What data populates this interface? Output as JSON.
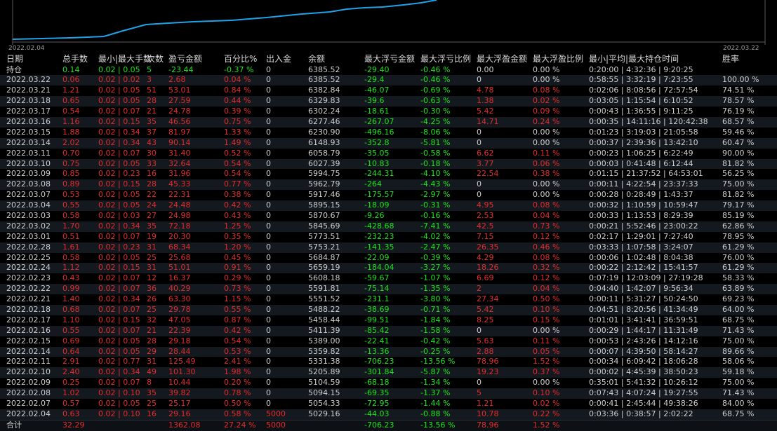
{
  "chart": {
    "start_label": "2022.02.04",
    "end_label": "2022.03.22",
    "line_color": "#1fa2e8"
  },
  "headers": [
    "日期",
    "总手数",
    "最小|最大手数",
    "次数",
    "盈亏金额",
    "百分比%",
    "出入金",
    "余额",
    "最大浮亏金额",
    "最大浮亏比例",
    "最大浮盈金额",
    "最大浮盈比例",
    "最小|平均|最大持仓时间",
    "胜率"
  ],
  "position_row": {
    "label": "持仓",
    "lots": "0.14",
    "minmax": "0.02 | 0.05",
    "count": "5",
    "pl": "-23.44",
    "pct": "-0.37 %",
    "io": "0",
    "bal": "6385.52",
    "maxloss": "-29.40",
    "maxlosspct": "-0.46 %",
    "maxprofit": "0.00",
    "maxprofitpct": "0.00 %",
    "hold": "0:20:00 | 4:32:36 | 9:20:25",
    "win": ""
  },
  "rows": [
    [
      "2022.03.22",
      "0.06",
      "0.02 | 0.02",
      "3",
      "2.68",
      "0.04 %",
      "0",
      "6385.52",
      "-29.4",
      "-0.46 %",
      "0",
      "0.00 %",
      "0:58:55 | 3:32:19 | 7:23:55",
      "100.00 %"
    ],
    [
      "2022.03.21",
      "1.21",
      "0.02 | 0.05",
      "51",
      "53.01",
      "0.84 %",
      "0",
      "6382.84",
      "-46.07",
      "-0.69 %",
      "4.78",
      "0.08 %",
      "0:02:06 | 8:08:56 | 72:57:54",
      "74.51 %"
    ],
    [
      "2022.03.18",
      "0.65",
      "0.02 | 0.05",
      "28",
      "27.59",
      "0.44 %",
      "0",
      "6329.83",
      "-39.6",
      "-0.63 %",
      "1.38",
      "0.02 %",
      "0:03:05 | 1:15:54 | 6:10:52",
      "78.57 %"
    ],
    [
      "2022.03.17",
      "0.54",
      "0.02 | 0.07",
      "21",
      "24.78",
      "0.39 %",
      "0",
      "6302.24",
      "-18.61",
      "-0.30 %",
      "5.42",
      "0.09 %",
      "0:00:43 | 1:36:55 | 9:11:25",
      "76.19 %"
    ],
    [
      "2022.03.16",
      "1.16",
      "0.02 | 0.15",
      "35",
      "46.56",
      "0.75 %",
      "0",
      "6277.46",
      "-267.07",
      "-4.25 %",
      "14.71",
      "0.24 %",
      "0:00:35 | 14:11:16 | 120:42:38",
      "68.57 %"
    ],
    [
      "2022.03.15",
      "1.88",
      "0.02 | 0.34",
      "37",
      "81.97",
      "1.33 %",
      "0",
      "6230.90",
      "-496.16",
      "-8.06 %",
      "0",
      "0.00 %",
      "0:01:23 | 3:19:03 | 21:05:58",
      "59.46 %"
    ],
    [
      "2022.03.14",
      "2.02",
      "0.02 | 0.34",
      "43",
      "90.14",
      "1.49 %",
      "0",
      "6148.93",
      "-352.8",
      "-5.81 %",
      "0",
      "0.00 %",
      "0:00:37 | 2:39:36 | 13:42:10",
      "60.47 %"
    ],
    [
      "2022.03.11",
      "0.70",
      "0.02 | 0.07",
      "30",
      "31.40",
      "0.52 %",
      "0",
      "6058.79",
      "-35.05",
      "-0.58 %",
      "6.62",
      "0.11 %",
      "0:00:23 | 1:06:25 | 6:22:49",
      "90.00 %"
    ],
    [
      "2022.03.10",
      "0.75",
      "0.02 | 0.05",
      "33",
      "32.64",
      "0.54 %",
      "0",
      "6027.39",
      "-10.83",
      "-0.18 %",
      "3.77",
      "0.06 %",
      "0:00:03 | 0:41:48 | 6:12:44",
      "81.82 %"
    ],
    [
      "2022.03.09",
      "0.85",
      "0.02 | 0.23",
      "16",
      "31.96",
      "0.54 %",
      "0",
      "5994.75",
      "-244.31",
      "-4.10 %",
      "22.54",
      "0.38 %",
      "0:01:15 | 21:37:52 | 64:53:01",
      "56.25 %"
    ],
    [
      "2022.03.08",
      "0.89",
      "0.02 | 0.15",
      "28",
      "45.33",
      "0.77 %",
      "0",
      "5962.79",
      "-264",
      "-4.43 %",
      "0",
      "0.00 %",
      "0:00:11 | 4:22:54 | 23:37:33",
      "75.00 %"
    ],
    [
      "2022.03.07",
      "0.53",
      "0.02 | 0.05",
      "22",
      "22.31",
      "0.38 %",
      "0",
      "5917.46",
      "-175.57",
      "-2.97 %",
      "0",
      "0.00 %",
      "0:00:28 | 0:28:49 | 1:43:37",
      "81.82 %"
    ],
    [
      "2022.03.04",
      "0.55",
      "0.02 | 0.05",
      "24",
      "24.48",
      "0.42 %",
      "0",
      "5895.15",
      "-18.09",
      "-0.31 %",
      "4.95",
      "0.08 %",
      "0:00:32 | 1:10:59 | 10:59:47",
      "79.17 %"
    ],
    [
      "2022.03.03",
      "0.58",
      "0.02 | 0.03",
      "27",
      "24.98",
      "0.43 %",
      "0",
      "5870.67",
      "-9.26",
      "-0.16 %",
      "2.53",
      "0.04 %",
      "0:00:33 | 1:13:53 | 8:29:39",
      "85.19 %"
    ],
    [
      "2022.03.02",
      "1.70",
      "0.02 | 0.34",
      "35",
      "72.18",
      "1.25 %",
      "0",
      "5845.69",
      "-428.68",
      "-7.41 %",
      "42.5",
      "0.73 %",
      "0:00:21 | 5:52:46 | 23:00:22",
      "62.86 %"
    ],
    [
      "2022.03.01",
      "0.51",
      "0.02 | 0.07",
      "19",
      "20.30",
      "0.35 %",
      "0",
      "5773.51",
      "-232.23",
      "-4.02 %",
      "7.15",
      "0.12 %",
      "0:02:17 | 1:29:01 | 7:27:40",
      "78.95 %"
    ],
    [
      "2022.02.28",
      "1.61",
      "0.02 | 0.23",
      "31",
      "68.34",
      "1.20 %",
      "0",
      "5753.21",
      "-141.35",
      "-2.47 %",
      "26.35",
      "0.46 %",
      "0:03:33 | 1:07:58 | 3:24:07",
      "61.29 %"
    ],
    [
      "2022.02.25",
      "0.58",
      "0.02 | 0.05",
      "25",
      "25.68",
      "0.45 %",
      "0",
      "5684.87",
      "-22.09",
      "-0.39 %",
      "4.29",
      "0.08 %",
      "0:00:06 | 1:02:48 | 8:04:38",
      "76.00 %"
    ],
    [
      "2022.02.24",
      "1.12",
      "0.02 | 0.15",
      "31",
      "51.01",
      "0.91 %",
      "0",
      "5659.19",
      "-184.04",
      "-3.27 %",
      "18.26",
      "0.32 %",
      "0:00:22 | 2:12:42 | 15:41:57",
      "61.29 %"
    ],
    [
      "2022.02.23",
      "0.43",
      "0.02 | 0.07",
      "12",
      "16.37",
      "0.29 %",
      "0",
      "5608.18",
      "-59.67",
      "-1.07 %",
      "6.69",
      "0.12 %",
      "0:07:19 | 12:03:09 | 27:19:28",
      "58.33 %"
    ],
    [
      "2022.02.22",
      "0.99",
      "0.02 | 0.07",
      "36",
      "40.29",
      "0.73 %",
      "0",
      "5591.81",
      "-75.14",
      "-1.35 %",
      "2",
      "0.04 %",
      "0:04:40 | 1:42:07 | 9:56:34",
      "63.89 %"
    ],
    [
      "2022.02.21",
      "1.40",
      "0.02 | 0.34",
      "26",
      "63.30",
      "1.15 %",
      "0",
      "5551.52",
      "-231.1",
      "-3.80 %",
      "27.34",
      "0.50 %",
      "0:00:11 | 5:31:27 | 50:24:50",
      "69.23 %"
    ],
    [
      "2022.02.18",
      "0.68",
      "0.02 | 0.07",
      "25",
      "29.78",
      "0.55 %",
      "0",
      "5488.22",
      "-38.69",
      "-0.71 %",
      "5.42",
      "0.10 %",
      "0:04:51 | 8:20:56 | 41:34:49",
      "64.00 %"
    ],
    [
      "2022.02.17",
      "1.10",
      "0.02 | 0.15",
      "32",
      "47.05",
      "0.87 %",
      "0",
      "5458.44",
      "-99.51",
      "-1.84 %",
      "8.25",
      "0.15 %",
      "0:01:01 | 3:41:41 | 36:59:51",
      "68.75 %"
    ],
    [
      "2022.02.16",
      "0.55",
      "0.02 | 0.07",
      "21",
      "22.39",
      "0.42 %",
      "0",
      "5411.39",
      "-85.42",
      "-1.58 %",
      "0",
      "0.00 %",
      "0:00:29 | 1:44:17 | 11:31:49",
      "71.43 %"
    ],
    [
      "2022.02.15",
      "0.69",
      "0.02 | 0.05",
      "28",
      "29.18",
      "0.54 %",
      "0",
      "5389.00",
      "-22.41",
      "-0.42 %",
      "5.63",
      "0.11 %",
      "0:00:53 | 2:43:26 | 14:12:16",
      "75.00 %"
    ],
    [
      "2022.02.14",
      "0.64",
      "0.02 | 0.05",
      "29",
      "28.44",
      "0.53 %",
      "0",
      "5359.82",
      "-13.36",
      "-0.25 %",
      "2.88",
      "0.05 %",
      "0:00:07 | 4:39:50 | 58:14:27",
      "89.66 %"
    ],
    [
      "2022.02.11",
      "2.91",
      "0.02 | 0.77",
      "31",
      "125.49",
      "2.41 %",
      "0",
      "5331.38",
      "-706.23",
      "-13.56 %",
      "78.96",
      "1.52 %",
      "0:00:34 | 6:09:42 | 18:06:28",
      "58.06 %"
    ],
    [
      "2022.02.10",
      "2.40",
      "0.02 | 0.34",
      "49",
      "101.30",
      "1.98 %",
      "0",
      "5205.89",
      "-301.84",
      "-5.87 %",
      "19.23",
      "0.37 %",
      "0:00:02 | 4:45:39 | 38:50:23",
      "59.18 %"
    ],
    [
      "2022.02.09",
      "0.25",
      "0.02 | 0.07",
      "8",
      "10.44",
      "0.20 %",
      "0",
      "5104.59",
      "-68.18",
      "-1.34 %",
      "0",
      "0.00 %",
      "0:35:01 | 5:41:32 | 10:26:12",
      "75.00 %"
    ],
    [
      "2022.02.08",
      "1.02",
      "0.02 | 0.10",
      "35",
      "39.82",
      "0.78 %",
      "0",
      "5094.15",
      "-69.35",
      "-1.37 %",
      "5",
      "0.10 %",
      "0:07:43 | 4:07:24 | 19:27:55",
      "71.43 %"
    ],
    [
      "2022.02.07",
      "0.57",
      "0.02 | 0.05",
      "25",
      "25.17",
      "0.50 %",
      "0",
      "5054.33",
      "-72.95",
      "-1.44 %",
      "1.21",
      "0.02 %",
      "0:00:41 | 2:45:44 | 49:38:26",
      "84.00 %"
    ],
    [
      "2022.02.04",
      "0.63",
      "0.02 | 0.10",
      "16",
      "29.16",
      "0.58 %",
      "5000",
      "5029.16",
      "-44.03",
      "-0.88 %",
      "10.78",
      "0.22 %",
      "0:03:36 | 0:38:57 | 2:02:22",
      "68.75 %"
    ]
  ],
  "totals": {
    "label": "合计",
    "lots": "32.29",
    "pl": "1362.08",
    "pct": "27.24 %",
    "io": "5000",
    "maxloss": "-706.23",
    "maxlosspct": "-13.56 %",
    "maxprofit": "78.96",
    "maxprofitpct": "1.52 %"
  },
  "colors": {
    "positive": "#e32d2d",
    "negative": "#19e619",
    "neutral": "#cfcfcf",
    "header": "#d8d8d8",
    "alt_row": "#14191f"
  }
}
